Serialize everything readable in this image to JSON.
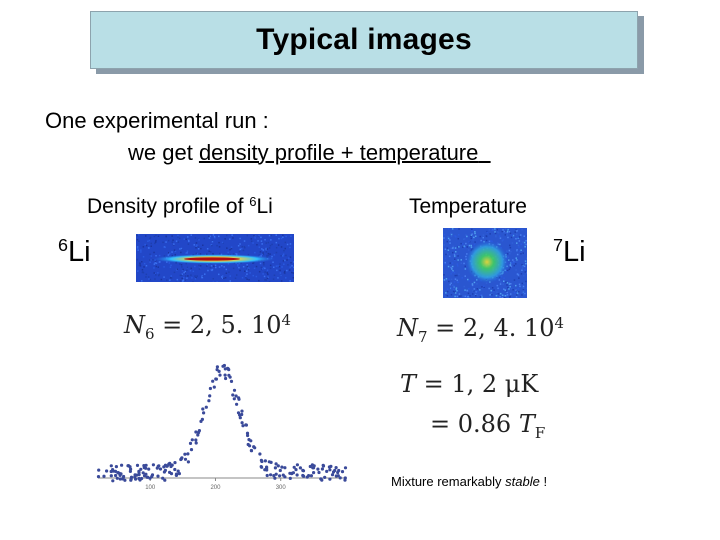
{
  "slide": {
    "title": "Typical images",
    "line1": "One experimental run :",
    "line2_prefix": "we get ",
    "line2_underlined": "density profile + temperature",
    "density_caption": "Density profile of ",
    "density_caption_sup": "6",
    "density_caption_tail": "Li",
    "temperature_caption": "Temperature",
    "li6_sup": "6",
    "li6_text": "Li",
    "li7_sup": "7",
    "li7_text": "Li",
    "n6": {
      "sym": "N",
      "sub": "6",
      "rest": " = 2, 5. 10",
      "exp": "4"
    },
    "n7": {
      "sym": "N",
      "sub": "7",
      "rest": " = 2, 4. 10",
      "exp": "4"
    },
    "temp1": {
      "sym": "T",
      "rest": " = 1, 2 μK"
    },
    "temp2": {
      "rest": "= 0.86 ",
      "sym": "T",
      "sub": "F"
    },
    "mixture_prefix": "Mixture remarkably ",
    "mixture_emph": "stable",
    "mixture_suffix": " !"
  },
  "chart_data": {
    "type": "scatter",
    "title": "",
    "xlabel": "",
    "ylabel": "",
    "x_tick_labels": [
      "100",
      "200",
      "300"
    ],
    "description_shape": "gaussian peak",
    "peak_x": 210,
    "peak_height": 1.0,
    "width_sigma": 28,
    "xlim": [
      20,
      400
    ],
    "ylim": [
      -0.05,
      1.05
    ],
    "colors": {
      "points": "#3a4a9a"
    }
  }
}
